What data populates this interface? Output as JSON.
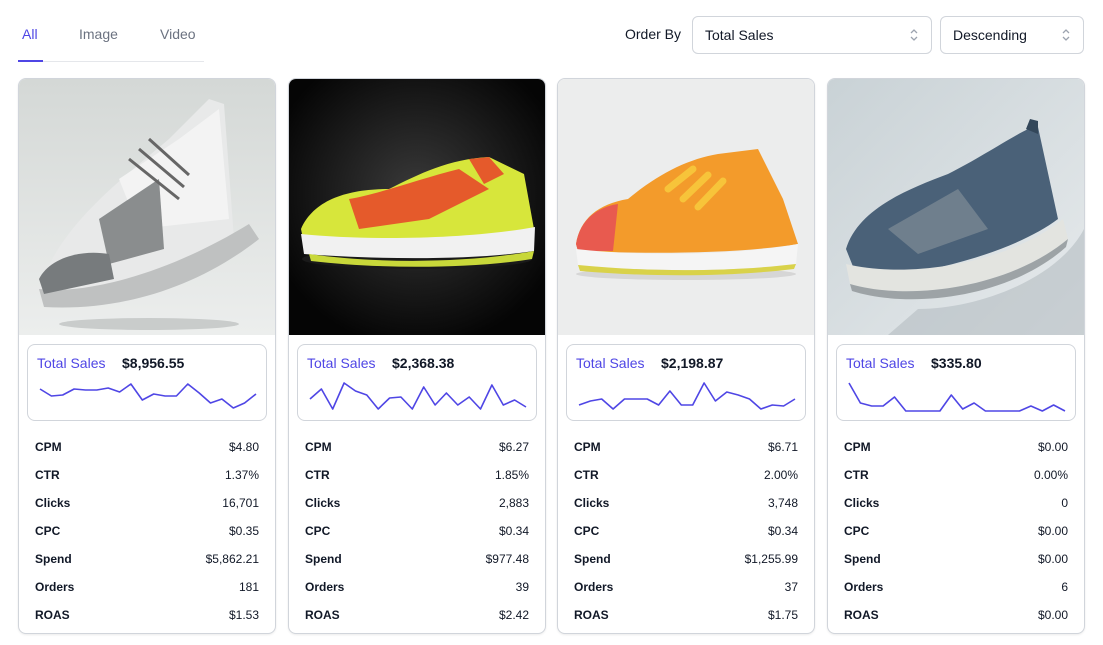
{
  "tabs": [
    {
      "label": "All",
      "active": true
    },
    {
      "label": "Image",
      "active": false
    },
    {
      "label": "Video",
      "active": false
    }
  ],
  "order": {
    "label": "Order By",
    "metric_value": "Total Sales",
    "direction_value": "Descending"
  },
  "colors": {
    "accent": "#4f46e5",
    "border": "#d1d5db",
    "text": "#111827",
    "muted": "#6b7280"
  },
  "cards": [
    {
      "image_desc": "grey and white sneaker floating",
      "sales_label": "Total Sales",
      "sales_value": "$8,956.55",
      "spark": [
        8,
        15,
        14,
        8,
        9,
        9,
        7,
        11,
        3,
        19,
        13,
        15,
        15,
        3,
        12,
        22,
        18,
        27,
        22,
        13
      ],
      "metrics": [
        {
          "name": "CPM",
          "value": "$4.80"
        },
        {
          "name": "CTR",
          "value": "1.37%"
        },
        {
          "name": "Clicks",
          "value": "16,701"
        },
        {
          "name": "CPC",
          "value": "$0.35"
        },
        {
          "name": "Spend",
          "value": "$5,862.21"
        },
        {
          "name": "Orders",
          "value": "181"
        },
        {
          "name": "ROAS",
          "value": "$1.53"
        }
      ]
    },
    {
      "image_desc": "red and neon yellow running shoe on black background",
      "sales_label": "Total Sales",
      "sales_value": "$2,368.38",
      "spark": [
        18,
        8,
        28,
        2,
        10,
        14,
        28,
        17,
        16,
        28,
        6,
        24,
        12,
        24,
        16,
        28,
        4,
        24,
        19,
        26
      ],
      "metrics": [
        {
          "name": "CPM",
          "value": "$6.27"
        },
        {
          "name": "CTR",
          "value": "1.85%"
        },
        {
          "name": "Clicks",
          "value": "2,883"
        },
        {
          "name": "CPC",
          "value": "$0.34"
        },
        {
          "name": "Spend",
          "value": "$977.48"
        },
        {
          "name": "Orders",
          "value": "39"
        },
        {
          "name": "ROAS",
          "value": "$2.42"
        }
      ]
    },
    {
      "image_desc": "orange and yellow sneaker on light background",
      "sales_label": "Total Sales",
      "sales_value": "$2,198.87",
      "spark": [
        24,
        20,
        18,
        28,
        18,
        18,
        18,
        24,
        10,
        24,
        24,
        2,
        20,
        11,
        14,
        18,
        28,
        24,
        25,
        18
      ],
      "metrics": [
        {
          "name": "CPM",
          "value": "$6.71"
        },
        {
          "name": "CTR",
          "value": "2.00%"
        },
        {
          "name": "Clicks",
          "value": "3,748"
        },
        {
          "name": "CPC",
          "value": "$0.34"
        },
        {
          "name": "Spend",
          "value": "$1,255.99"
        },
        {
          "name": "Orders",
          "value": "37"
        },
        {
          "name": "ROAS",
          "value": "$1.75"
        }
      ]
    },
    {
      "image_desc": "dark blue knit sneaker floating",
      "sales_label": "Total Sales",
      "sales_value": "$335.80",
      "spark": [
        2,
        22,
        25,
        25,
        16,
        30,
        30,
        30,
        30,
        14,
        28,
        22,
        30,
        30,
        30,
        30,
        25,
        30,
        24,
        30
      ],
      "metrics": [
        {
          "name": "CPM",
          "value": "$0.00"
        },
        {
          "name": "CTR",
          "value": "0.00%"
        },
        {
          "name": "Clicks",
          "value": "0"
        },
        {
          "name": "CPC",
          "value": "$0.00"
        },
        {
          "name": "Spend",
          "value": "$0.00"
        },
        {
          "name": "Orders",
          "value": "6"
        },
        {
          "name": "ROAS",
          "value": "$0.00"
        }
      ]
    }
  ]
}
